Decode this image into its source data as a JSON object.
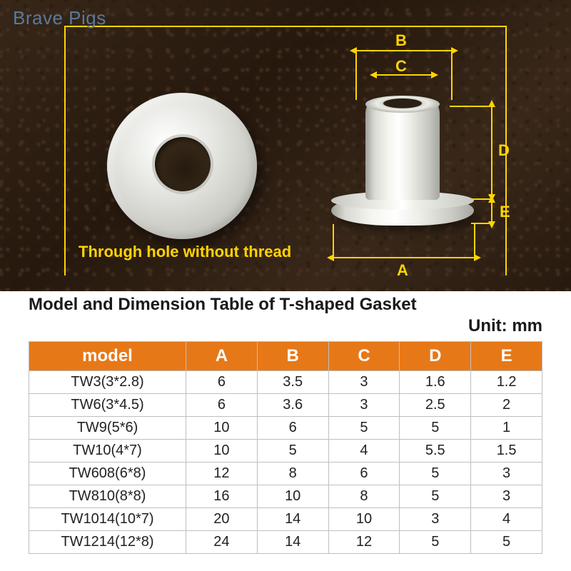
{
  "watermark": "Brave Pigs",
  "photo": {
    "through_hole_label": "Through hole without thread",
    "dim_labels": {
      "A": "A",
      "B": "B",
      "C": "C",
      "D": "D",
      "E": "E"
    },
    "annotation_color": "#ffd400"
  },
  "caption": {
    "title": "Model and Dimension Table of T-shaped Gasket",
    "unit_line": "Unit: mm"
  },
  "table": {
    "header_bg": "#e77817",
    "header_color": "#ffffff",
    "border_color": "#bfbfbf",
    "columns": [
      "model",
      "A",
      "B",
      "C",
      "D",
      "E"
    ],
    "rows": [
      [
        "TW3(3*2.8)",
        "6",
        "3.5",
        "3",
        "1.6",
        "1.2"
      ],
      [
        "TW6(3*4.5)",
        "6",
        "3.6",
        "3",
        "2.5",
        "2"
      ],
      [
        "TW9(5*6)",
        "10",
        "6",
        "5",
        "5",
        "1"
      ],
      [
        "TW10(4*7)",
        "10",
        "5",
        "4",
        "5.5",
        "1.5"
      ],
      [
        "TW608(6*8)",
        "12",
        "8",
        "6",
        "5",
        "3"
      ],
      [
        "TW810(8*8)",
        "16",
        "10",
        "8",
        "5",
        "3"
      ],
      [
        "TW1014(10*7)",
        "20",
        "14",
        "10",
        "3",
        "4"
      ],
      [
        "TW1214(12*8)",
        "24",
        "14",
        "12",
        "5",
        "5"
      ]
    ]
  }
}
